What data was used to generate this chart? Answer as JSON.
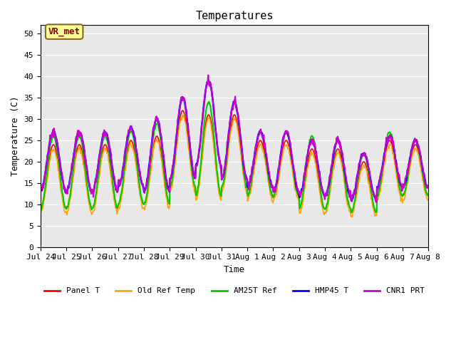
{
  "title": "Temperatures",
  "xlabel": "Time",
  "ylabel": "Temperature (C)",
  "ylim": [
    0,
    52
  ],
  "yticks": [
    0,
    5,
    10,
    15,
    20,
    25,
    30,
    35,
    40,
    45,
    50
  ],
  "annotation_text": "VR_met",
  "annotation_color": "#8B0000",
  "annotation_bg": "#FFFF99",
  "bg_color": "#E8E8E8",
  "series_colors": [
    "#FF0000",
    "#FFA500",
    "#00CC00",
    "#0000FF",
    "#CC00CC"
  ],
  "series_labels": [
    "Panel T",
    "Old Ref Temp",
    "AM25T Ref",
    "HMP45 T",
    "CNR1 PRT"
  ],
  "x_tick_labels": [
    "Jul 24",
    "Jul 25",
    "Jul 26",
    "Jul 27",
    "Jul 28",
    "Jul 29",
    "Jul 30",
    "Jul 31",
    "Aug 1",
    "Aug 2",
    "Aug 3",
    "Aug 4",
    "Aug 5",
    "Aug 6",
    "Aug 7",
    "Aug 8"
  ],
  "num_days": 15,
  "points_per_day": 48
}
